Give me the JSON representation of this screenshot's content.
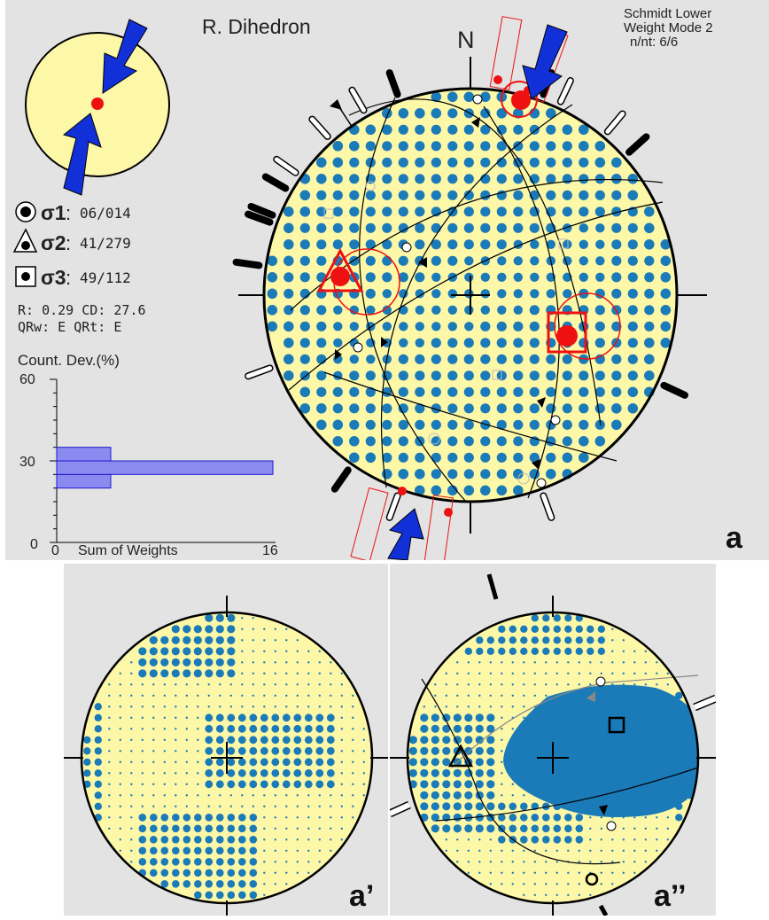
{
  "header": {
    "title": "R. Dihedron",
    "north_label": "N",
    "projection": "Schmidt Lower",
    "weight_mode": "Weight Mode 2",
    "count": "n/nt: 6/6"
  },
  "stress": {
    "sigma1": {
      "symbol": "σ1",
      "colon": ":",
      "value": "06/014"
    },
    "sigma2": {
      "symbol": "σ2",
      "colon": ":",
      "value": "41/279"
    },
    "sigma3": {
      "symbol": "σ3",
      "colon": ":",
      "value": "49/112"
    },
    "ratio_line": "R: 0.29  CD: 27.6",
    "quality_line": "QRw: E  QRt: E"
  },
  "histogram": {
    "title": "Count. Dev.(%)",
    "y_ticks": [
      "60",
      "30",
      "0"
    ],
    "x_ticks": [
      "0",
      "16"
    ],
    "xlabel": "Sum of Weights",
    "bars": [
      {
        "y_from": 20,
        "y_to": 25,
        "weight": 4
      },
      {
        "y_from": 25,
        "y_to": 30,
        "weight": 16
      },
      {
        "y_from": 30,
        "y_to": 35,
        "weight": 4
      }
    ],
    "y_max": 60,
    "x_max": 16
  },
  "panel_labels": {
    "a": "a",
    "a_prime": "a’",
    "a_double_prime": "a’’"
  },
  "colors": {
    "background": "#e3e3e3",
    "net_fill": "#fdf7a8",
    "dot": "#1a7bb8",
    "red": "#ee1111",
    "arrow": "#1230d8",
    "hist_bar": "#8a8af0"
  }
}
